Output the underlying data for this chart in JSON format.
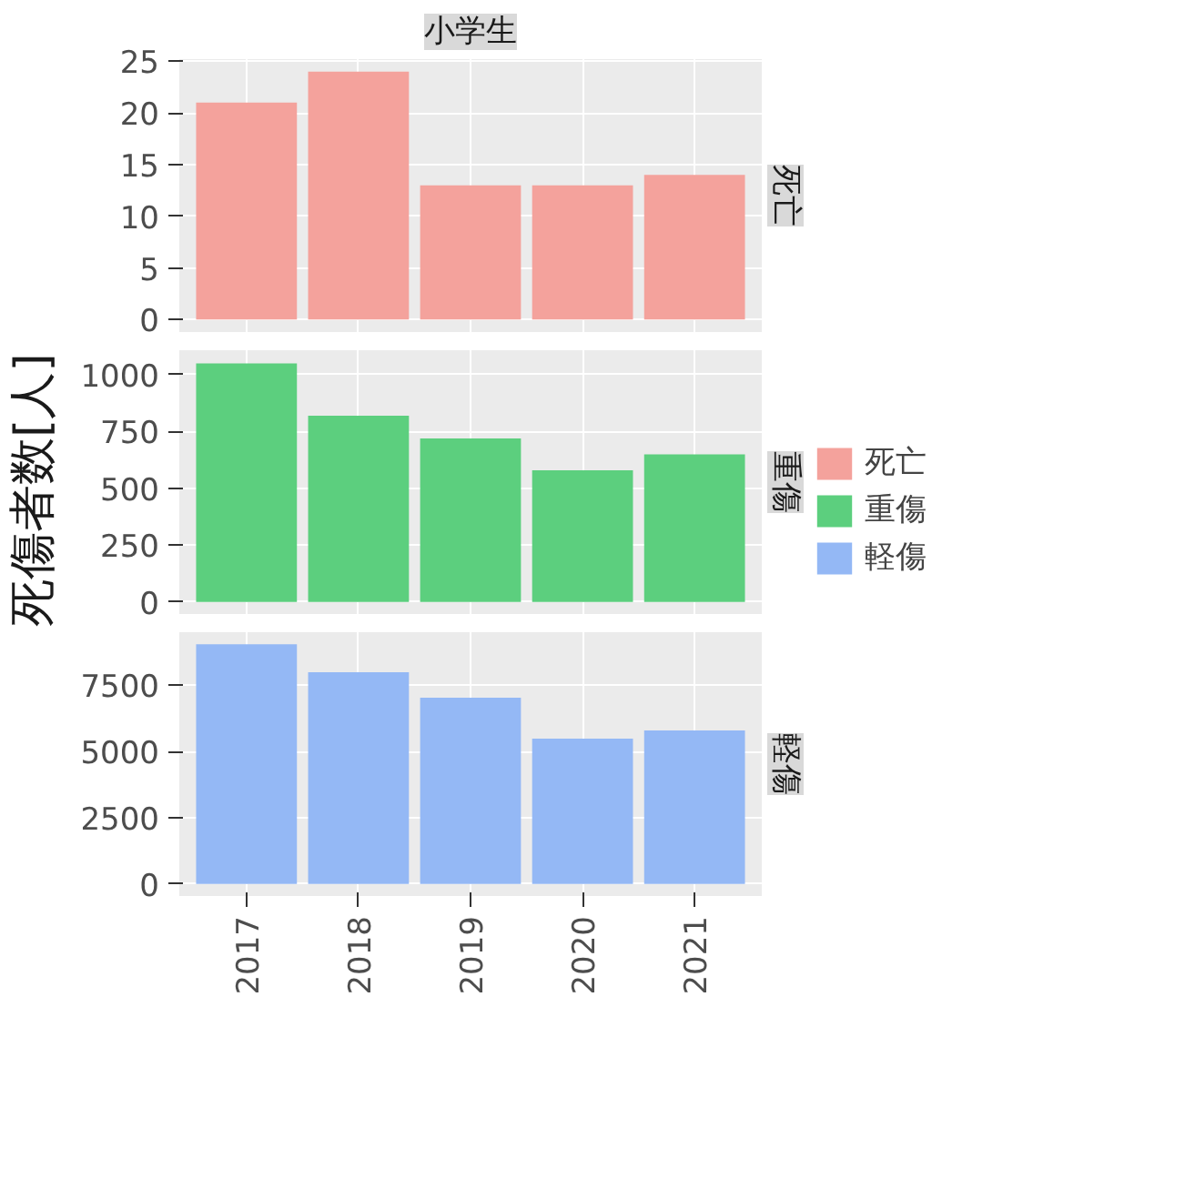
{
  "chart_data": [
    {
      "type": "bar",
      "title": "小学生",
      "categories": [
        "2017",
        "2018",
        "2019",
        "2020",
        "2021"
      ],
      "series": [
        {
          "name": "死亡",
          "color": "#f4a29c",
          "values": [
            21,
            24,
            13,
            13,
            14
          ]
        }
      ],
      "ylim": [
        -1.2,
        25.2
      ],
      "yticks": [
        0,
        5,
        10,
        15,
        20,
        25
      ],
      "grid": true,
      "tick_labels": "y"
    },
    {
      "type": "bar",
      "ylabel": "死傷者数[人]",
      "categories": [
        "2017",
        "2018",
        "2019",
        "2020",
        "2021"
      ],
      "series": [
        {
          "name": "重傷",
          "color": "#5ccf7e",
          "values": [
            1050,
            820,
            720,
            580,
            650
          ]
        }
      ],
      "ylim": [
        -53,
        1108
      ],
      "yticks": [
        0,
        250,
        500,
        750,
        1000
      ],
      "grid": true,
      "tick_labels": "y",
      "legend": "right"
    },
    {
      "type": "bar",
      "categories": [
        "2017",
        "2018",
        "2019",
        "2020",
        "2021"
      ],
      "series": [
        {
          "name": "軽傷",
          "color": "#94b8f5",
          "values": [
            9040,
            7980,
            7020,
            5480,
            5790
          ]
        }
      ],
      "ylim": [
        -452,
        9492
      ],
      "yticks": [
        0,
        2500,
        5000,
        7500
      ],
      "grid": true
    }
  ]
}
